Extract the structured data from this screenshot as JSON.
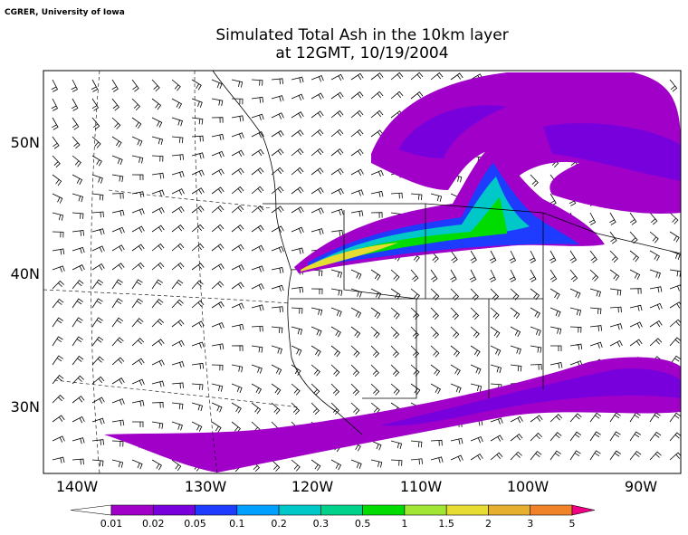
{
  "credit": "CGRER, University of Iowa",
  "title": [
    "Simulated Total Ash in the 10km layer",
    "at 12GMT, 10/19/2004"
  ],
  "lon_labels": [
    "140W",
    "130W",
    "120W",
    "110W",
    "100W",
    "90W"
  ],
  "lat_labels": [
    "50N",
    "40N",
    "30N"
  ],
  "colorbar": {
    "levels": [
      0.01,
      0.02,
      0.05,
      0.1,
      0.2,
      0.3,
      0.5,
      1,
      1.5,
      2,
      3,
      5
    ],
    "colors": [
      "#ffffff",
      "#a000c8",
      "#7800dc",
      "#1e3cff",
      "#00a0ff",
      "#00c8c8",
      "#00d28c",
      "#00dc00",
      "#a0e632",
      "#e6dc32",
      "#e6af2d",
      "#f08228",
      "#fa3c3c",
      "#f00082"
    ]
  }
}
